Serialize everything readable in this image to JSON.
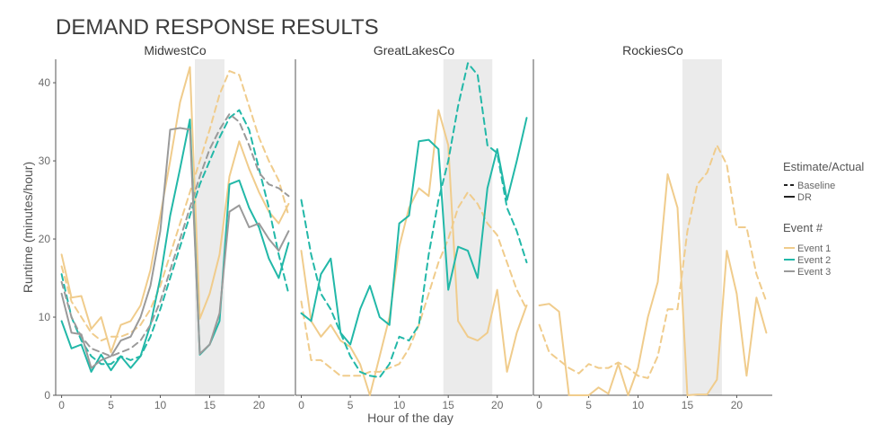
{
  "chart_data": {
    "type": "line",
    "title": "DEMAND RESPONSE RESULTS",
    "xlabel": "Hour of the day",
    "ylabel": "Runtime (minutes/hour)",
    "xlim": [
      0,
      23
    ],
    "ylim": [
      0,
      43
    ],
    "xticks": [
      0,
      5,
      10,
      15,
      20
    ],
    "yticks": [
      0,
      10,
      20,
      30,
      40
    ],
    "grid": false,
    "colors": {
      "Event 1": "#f0cc8c",
      "Event 2": "#22b8a8",
      "Event 3": "#9a9a9a"
    },
    "legend": {
      "placement": "right",
      "linetype_title": "Estimate/Actual",
      "linetypes": [
        "Baseline",
        "DR"
      ],
      "event_title": "Event #",
      "events": [
        "Event 1",
        "Event 2",
        "Event 3"
      ]
    },
    "panels": [
      {
        "name": "MidwestCo",
        "event_window": [
          13.5,
          16.5
        ],
        "series": [
          {
            "event": "Event 1",
            "type": "DR",
            "values": [
              18,
              12.5,
              12.7,
              8.5,
              10,
              5.5,
              9,
              9.5,
              11.5,
              16,
              23,
              30,
              37.5,
              42,
              9.8,
              13,
              18,
              28,
              32.5,
              29,
              26,
              23.5,
              22,
              24.5
            ]
          },
          {
            "event": "Event 1",
            "type": "Baseline",
            "values": [
              16.5,
              12,
              10,
              8,
              7,
              7.5,
              7.5,
              8,
              9,
              11,
              14,
              18,
              22,
              26,
              30,
              34,
              38.5,
              41.5,
              41,
              37,
              33,
              30,
              27.5,
              23
            ]
          },
          {
            "event": "Event 2",
            "type": "DR",
            "values": [
              9.5,
              6,
              6.5,
              3,
              5.2,
              3.2,
              5,
              3.5,
              5,
              9,
              15,
              23,
              29,
              35.3,
              5.2,
              6.5,
              9.5,
              27,
              27.5,
              24,
              21.5,
              17.5,
              15,
              19.5
            ]
          },
          {
            "event": "Event 2",
            "type": "Baseline",
            "values": [
              15.5,
              10,
              7,
              5,
              4,
              4,
              5,
              4.5,
              5,
              7.5,
              11,
              15,
              19,
              23,
              27,
              30,
              33,
              35.5,
              36.5,
              34,
              29,
              24,
              18,
              13
            ]
          },
          {
            "event": "Event 3",
            "type": "DR",
            "values": [
              13,
              8,
              7.8,
              3.5,
              4.5,
              5,
              7,
              7.5,
              10,
              14,
              21,
              34,
              34.2,
              34,
              5.3,
              6.5,
              10.5,
              23.5,
              24.3,
              21.5,
              22,
              20,
              18.5,
              21
            ]
          },
          {
            "event": "Event 3",
            "type": "Baseline",
            "values": [
              14.5,
              10,
              7.5,
              6,
              5.5,
              5,
              5.5,
              6,
              7,
              9,
              12,
              16,
              20,
              24,
              28,
              31.5,
              34,
              36,
              35,
              32,
              28.5,
              27,
              26.5,
              25.5
            ]
          }
        ]
      },
      {
        "name": "GreatLakesCo",
        "event_window": [
          14.5,
          19.5
        ],
        "series": [
          {
            "event": "Event 1",
            "type": "DR",
            "values": [
              18.5,
              9.5,
              7.5,
              9,
              7,
              6.2,
              4,
              0,
              5,
              10,
              19,
              24,
              26.5,
              25.5,
              36.5,
              32,
              9.5,
              7.5,
              7,
              8,
              13.5,
              3,
              8,
              11.5
            ]
          },
          {
            "event": "Event 1",
            "type": "Baseline",
            "values": [
              12,
              4.5,
              4.5,
              3.5,
              2.5,
              2.5,
              2.5,
              3,
              3,
              3.5,
              4,
              6,
              9,
              13,
              17,
              20,
              24,
              26,
              24.5,
              22,
              20.5,
              17,
              13.5,
              11
            ]
          },
          {
            "event": "Event 2",
            "type": "DR",
            "values": [
              10.5,
              9.5,
              15.5,
              17.5,
              8,
              6.5,
              11,
              14,
              10,
              9,
              22,
              23,
              32.5,
              32.7,
              31.5,
              13.5,
              19,
              18.5,
              15,
              26.5,
              31.5,
              25,
              30,
              35.5
            ]
          },
          {
            "event": "Event 2",
            "type": "Baseline",
            "values": [
              25,
              18,
              13,
              11,
              8,
              5,
              3,
              2.5,
              2.3,
              4,
              7.5,
              7,
              9,
              18,
              25,
              30,
              37,
              42.5,
              41,
              32,
              31,
              24,
              21,
              17
            ]
          }
        ]
      },
      {
        "name": "RockiesCo",
        "event_window": [
          14.5,
          18.5
        ],
        "series": [
          {
            "event": "Event 1",
            "type": "DR",
            "values": [
              11.5,
              11.7,
              10.7,
              0,
              0,
              0,
              1,
              0.2,
              4,
              0,
              3.5,
              10,
              14.5,
              28.3,
              24,
              0,
              0.1,
              0.1,
              2,
              18.5,
              13,
              2.5,
              12.5,
              8
            ]
          },
          {
            "event": "Event 1",
            "type": "Baseline",
            "values": [
              9,
              5.5,
              4.5,
              3.5,
              2.8,
              4,
              3.5,
              3.5,
              4.2,
              3.5,
              2.5,
              2.2,
              5,
              11,
              11,
              21,
              27,
              28.5,
              32,
              29.5,
              21.5,
              21.5,
              15.5,
              12
            ]
          }
        ]
      }
    ]
  }
}
